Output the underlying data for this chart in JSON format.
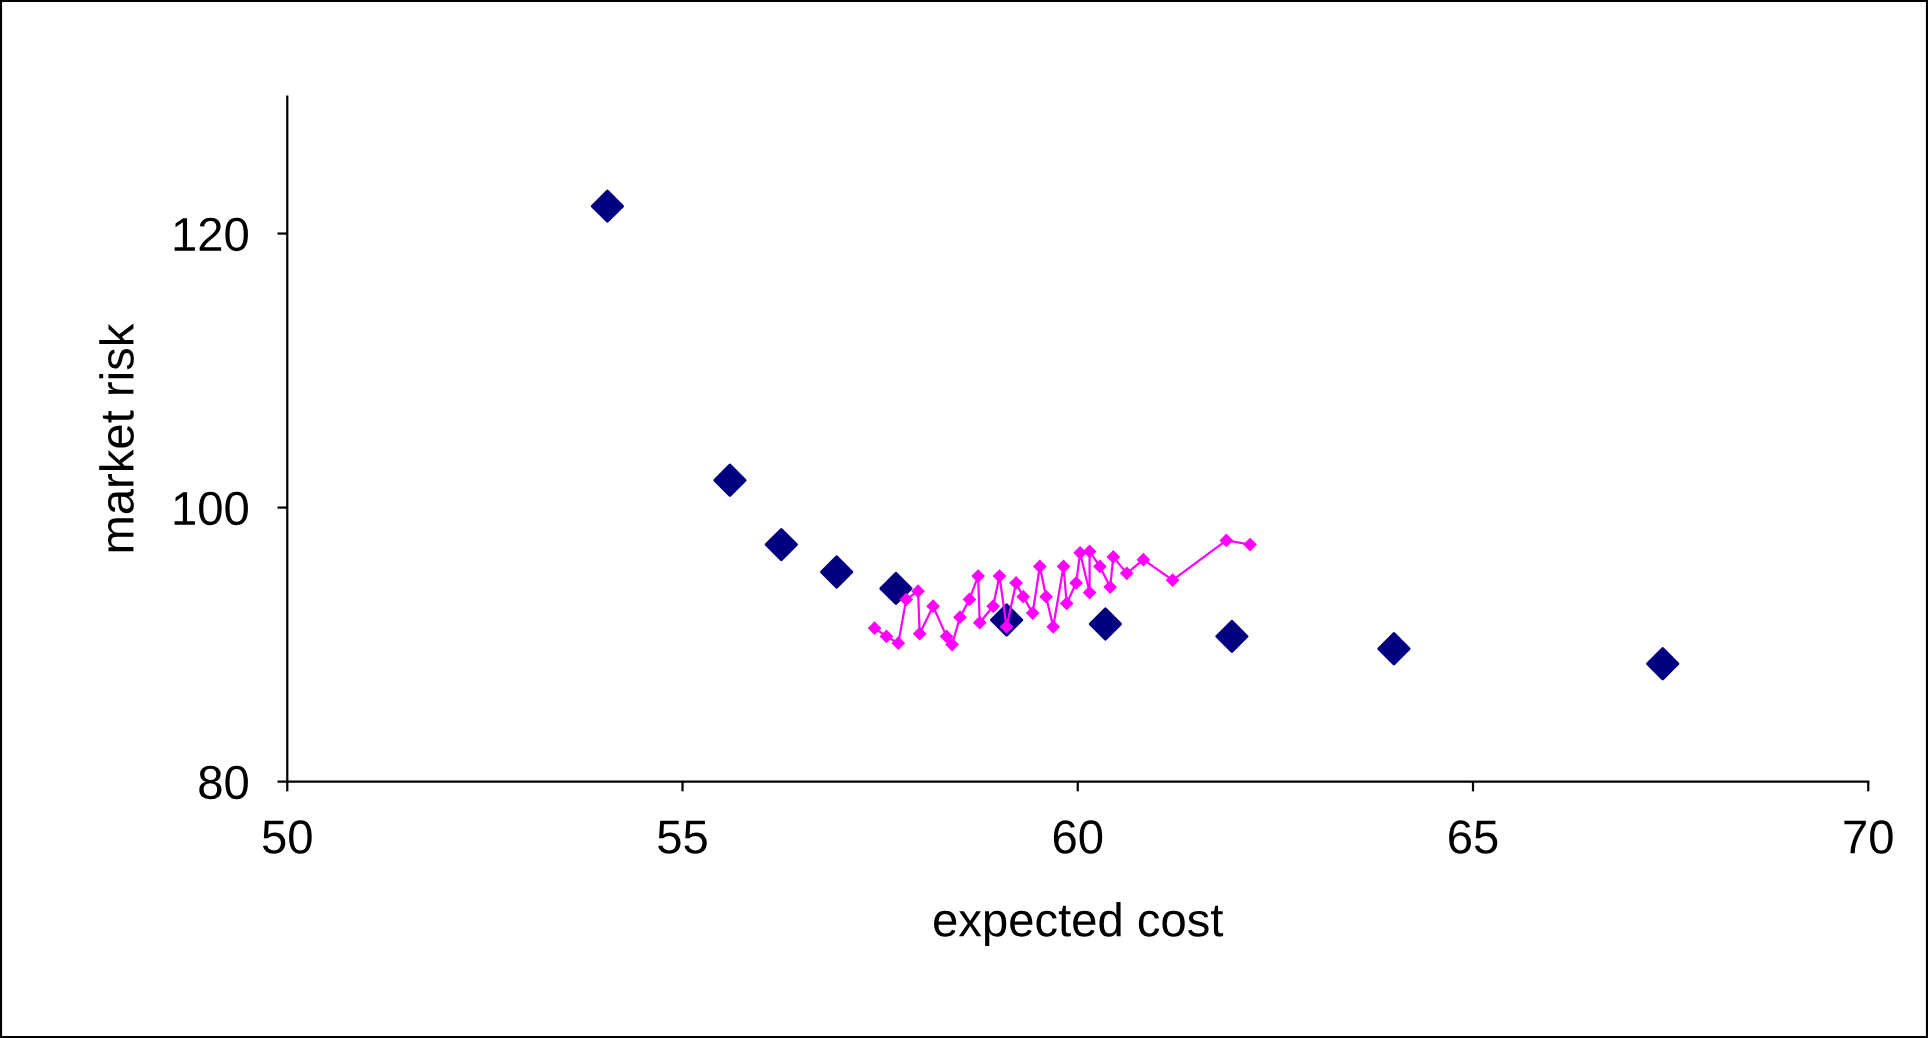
{
  "chart_data": {
    "type": "scatter",
    "xlabel": "expected cost",
    "ylabel": "market risk",
    "xlim": [
      50,
      70
    ],
    "xticks": [
      50,
      55,
      60,
      65,
      70
    ],
    "ylim": [
      80,
      130
    ],
    "yticks": [
      80,
      100,
      120
    ],
    "grid": false,
    "legend": false,
    "series": [
      {
        "color": "#000080",
        "marker": "diamond",
        "x": [
          54.05,
          55.6,
          56.25,
          56.95,
          57.7,
          59.1,
          60.35,
          61.95,
          64.0,
          67.4
        ],
        "values": [
          122,
          102,
          97.3,
          95.3,
          94.1,
          91.8,
          91.5,
          90.6,
          89.7,
          88.6
        ]
      },
      {
        "type": "line",
        "color": "#ff00ff",
        "marker": "diamond",
        "line_style": "solid",
        "x": [
          57.43,
          57.58,
          57.73,
          57.83,
          57.98,
          58.0,
          58.17,
          58.34,
          58.41,
          58.51,
          58.63,
          58.74,
          58.76,
          58.93,
          59.01,
          59.1,
          59.22,
          59.31,
          59.43,
          59.52,
          59.6,
          59.69,
          59.82,
          59.86,
          59.98,
          60.03,
          60.15,
          60.15,
          60.28,
          60.41,
          60.45,
          60.62,
          60.83,
          61.2,
          61.88,
          62.18
        ],
        "values": [
          91.2,
          90.6,
          90.1,
          93.3,
          93.9,
          90.8,
          92.8,
          90.6,
          90.0,
          92.0,
          93.3,
          95.0,
          91.6,
          92.8,
          95.0,
          91.3,
          94.5,
          93.5,
          92.3,
          95.7,
          93.5,
          91.3,
          95.7,
          93.0,
          94.5,
          96.7,
          93.8,
          96.8,
          95.7,
          94.2,
          96.4,
          95.2,
          96.2,
          94.7,
          97.6,
          97.3
        ]
      }
    ]
  }
}
